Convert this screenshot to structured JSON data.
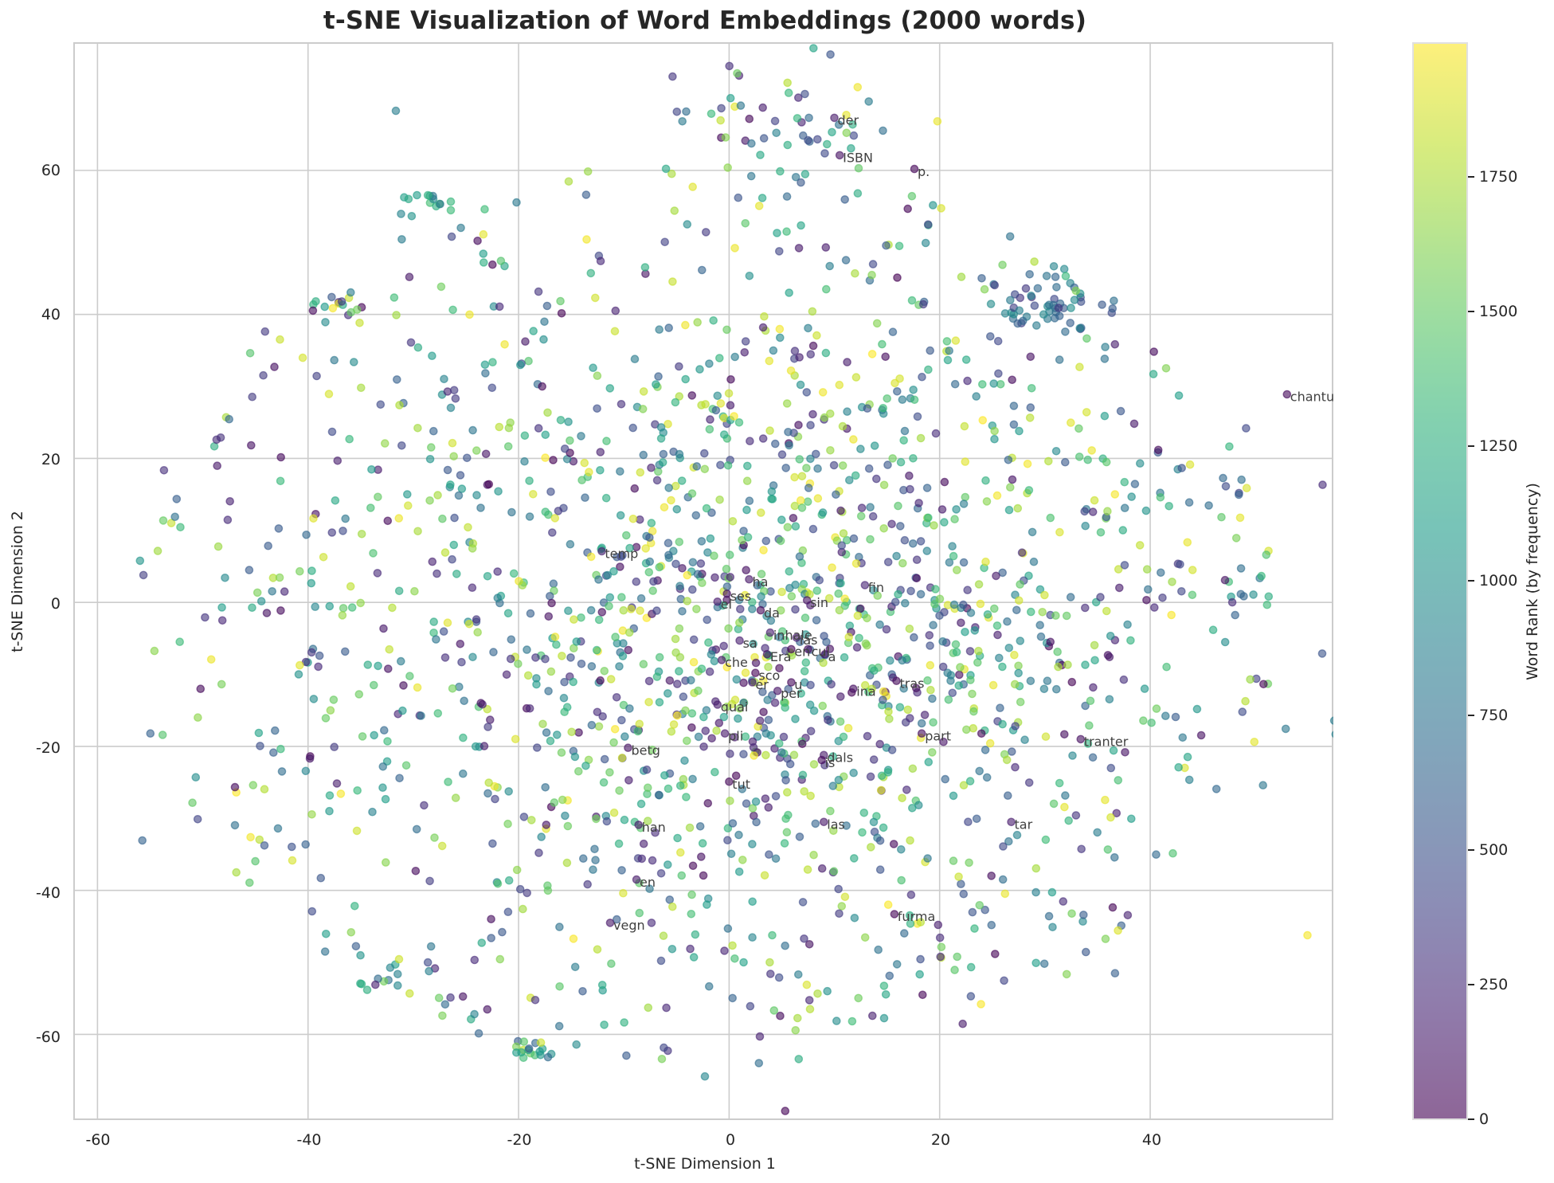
{
  "chart_data": {
    "type": "scatter",
    "title": "t-SNE Visualization of Word Embeddings (2000 words)",
    "xlabel": "t-SNE Dimension 1",
    "ylabel": "t-SNE Dimension 2",
    "xlim": [
      -62.3,
      57.4
    ],
    "ylim": [
      -71.9,
      77.8
    ],
    "x_ticks": [
      -60,
      -40,
      -20,
      0,
      20,
      40
    ],
    "y_ticks": [
      -60,
      -40,
      -20,
      0,
      20,
      40,
      60
    ],
    "grid": true,
    "n_points": 2000,
    "point_alpha": 0.6,
    "colormap": "viridis",
    "colorbar": {
      "label": "Word Rank (by frequency)",
      "range": [
        0,
        2000
      ],
      "ticks": [
        0,
        250,
        500,
        750,
        1000,
        1250,
        1500,
        1750
      ]
    },
    "annotations": [
      {
        "text": "der",
        "x": 10.3,
        "y": 67.0
      },
      {
        "text": "ISBN",
        "x": 10.8,
        "y": 61.8
      },
      {
        "text": "p.",
        "x": 17.9,
        "y": 59.9
      },
      {
        "text": "chantun",
        "x": 53.3,
        "y": 28.6
      },
      {
        "text": "temp",
        "x": -11.8,
        "y": 6.8
      },
      {
        "text": "ha",
        "x": 2.2,
        "y": 2.9
      },
      {
        "text": "fin",
        "x": 13.2,
        "y": 2.1
      },
      {
        "text": "ses",
        "x": 0.1,
        "y": 0.9
      },
      {
        "text": "sin",
        "x": 7.7,
        "y": 0.0
      },
      {
        "text": "el",
        "x": -0.8,
        "y": -0.2
      },
      {
        "text": "da",
        "x": 3.3,
        "y": -1.4
      },
      {
        "text": "inhale",
        "x": 4.2,
        "y": -4.5
      },
      {
        "text": "las",
        "x": 6.7,
        "y": -5.2
      },
      {
        "text": "sa",
        "x": 1.3,
        "y": -5.6
      },
      {
        "text": "Era",
        "x": 3.9,
        "y": -7.5
      },
      {
        "text": "en",
        "x": 6.2,
        "y": -6.8
      },
      {
        "text": "cul",
        "x": 7.8,
        "y": -6.8
      },
      {
        "text": "a",
        "x": 9.4,
        "y": -7.5
      },
      {
        "text": "che",
        "x": -0.4,
        "y": -8.3
      },
      {
        "text": "sco",
        "x": 2.8,
        "y": -10.1
      },
      {
        "text": "er",
        "x": 2.5,
        "y": -11.4
      },
      {
        "text": "u",
        "x": 6.2,
        "y": -11.4
      },
      {
        "text": "per",
        "x": 4.9,
        "y": -12.6
      },
      {
        "text": "ina",
        "x": 12.1,
        "y": -12.3
      },
      {
        "text": "tras",
        "x": 16.2,
        "y": -11.2
      },
      {
        "text": "quai",
        "x": -0.8,
        "y": -14.5
      },
      {
        "text": "pli",
        "x": -0.1,
        "y": -18.5
      },
      {
        "text": "part",
        "x": 18.6,
        "y": -18.5
      },
      {
        "text": "tranter",
        "x": 33.7,
        "y": -19.3
      },
      {
        "text": "betg",
        "x": -9.3,
        "y": -20.5
      },
      {
        "text": "dals",
        "x": 9.3,
        "y": -21.5
      },
      {
        "text": "is",
        "x": 9.1,
        "y": -22.2
      },
      {
        "text": "tut",
        "x": 0.3,
        "y": -25.2
      },
      {
        "text": "las",
        "x": 9.3,
        "y": -30.8
      },
      {
        "text": "tar",
        "x": 27.1,
        "y": -30.8
      },
      {
        "text": "han",
        "x": -8.3,
        "y": -31.2
      },
      {
        "text": "en",
        "x": -8.5,
        "y": -38.8
      },
      {
        "text": "furma",
        "x": 16.0,
        "y": -43.6
      },
      {
        "text": "vegn",
        "x": -11.0,
        "y": -44.8
      }
    ],
    "clusters": [
      {
        "center": [
          5.0,
          66.0
        ],
        "spread": [
          6,
          5
        ],
        "count": 60,
        "rank_mix": "mixed"
      },
      {
        "center": [
          -29.0,
          55.5
        ],
        "spread": [
          1.2,
          1.0
        ],
        "count": 14,
        "rank_mix": "mid"
      },
      {
        "center": [
          -38.5,
          41.5
        ],
        "spread": [
          1.5,
          0.8
        ],
        "count": 14,
        "rank_mix": "mixed"
      },
      {
        "center": [
          30.5,
          41.5
        ],
        "spread": [
          2.5,
          2.8
        ],
        "count": 48,
        "rank_mix": "low-mid"
      },
      {
        "center": [
          -19.0,
          -62.0
        ],
        "spread": [
          1.0,
          0.9
        ],
        "count": 16,
        "rank_mix": "mixed"
      },
      {
        "center": [
          -33.0,
          -52.5
        ],
        "spread": [
          1.5,
          0.8
        ],
        "count": 8,
        "rank_mix": "mid"
      },
      {
        "center": [
          4.0,
          -3.0
        ],
        "spread": [
          18,
          20
        ],
        "count": 900,
        "rank_mix": "mixed"
      }
    ]
  },
  "title": "t-SNE Visualization of Word Embeddings (2000 words)",
  "axes": {
    "xlabel": "t-SNE Dimension 1",
    "ylabel": "t-SNE Dimension 2",
    "x_ticks": [
      "-60",
      "-40",
      "-20",
      "0",
      "20",
      "40"
    ],
    "y_ticks": [
      "60",
      "40",
      "20",
      "0",
      "-20",
      "-40",
      "-60"
    ]
  },
  "colorbar": {
    "label": "Word Rank (by frequency)",
    "ticks": [
      "1750",
      "1500",
      "1250",
      "1000",
      "750",
      "500",
      "250",
      "0"
    ]
  },
  "colors": {
    "grid": "#cccccc",
    "text": "#262626",
    "annotation": "#404040"
  }
}
